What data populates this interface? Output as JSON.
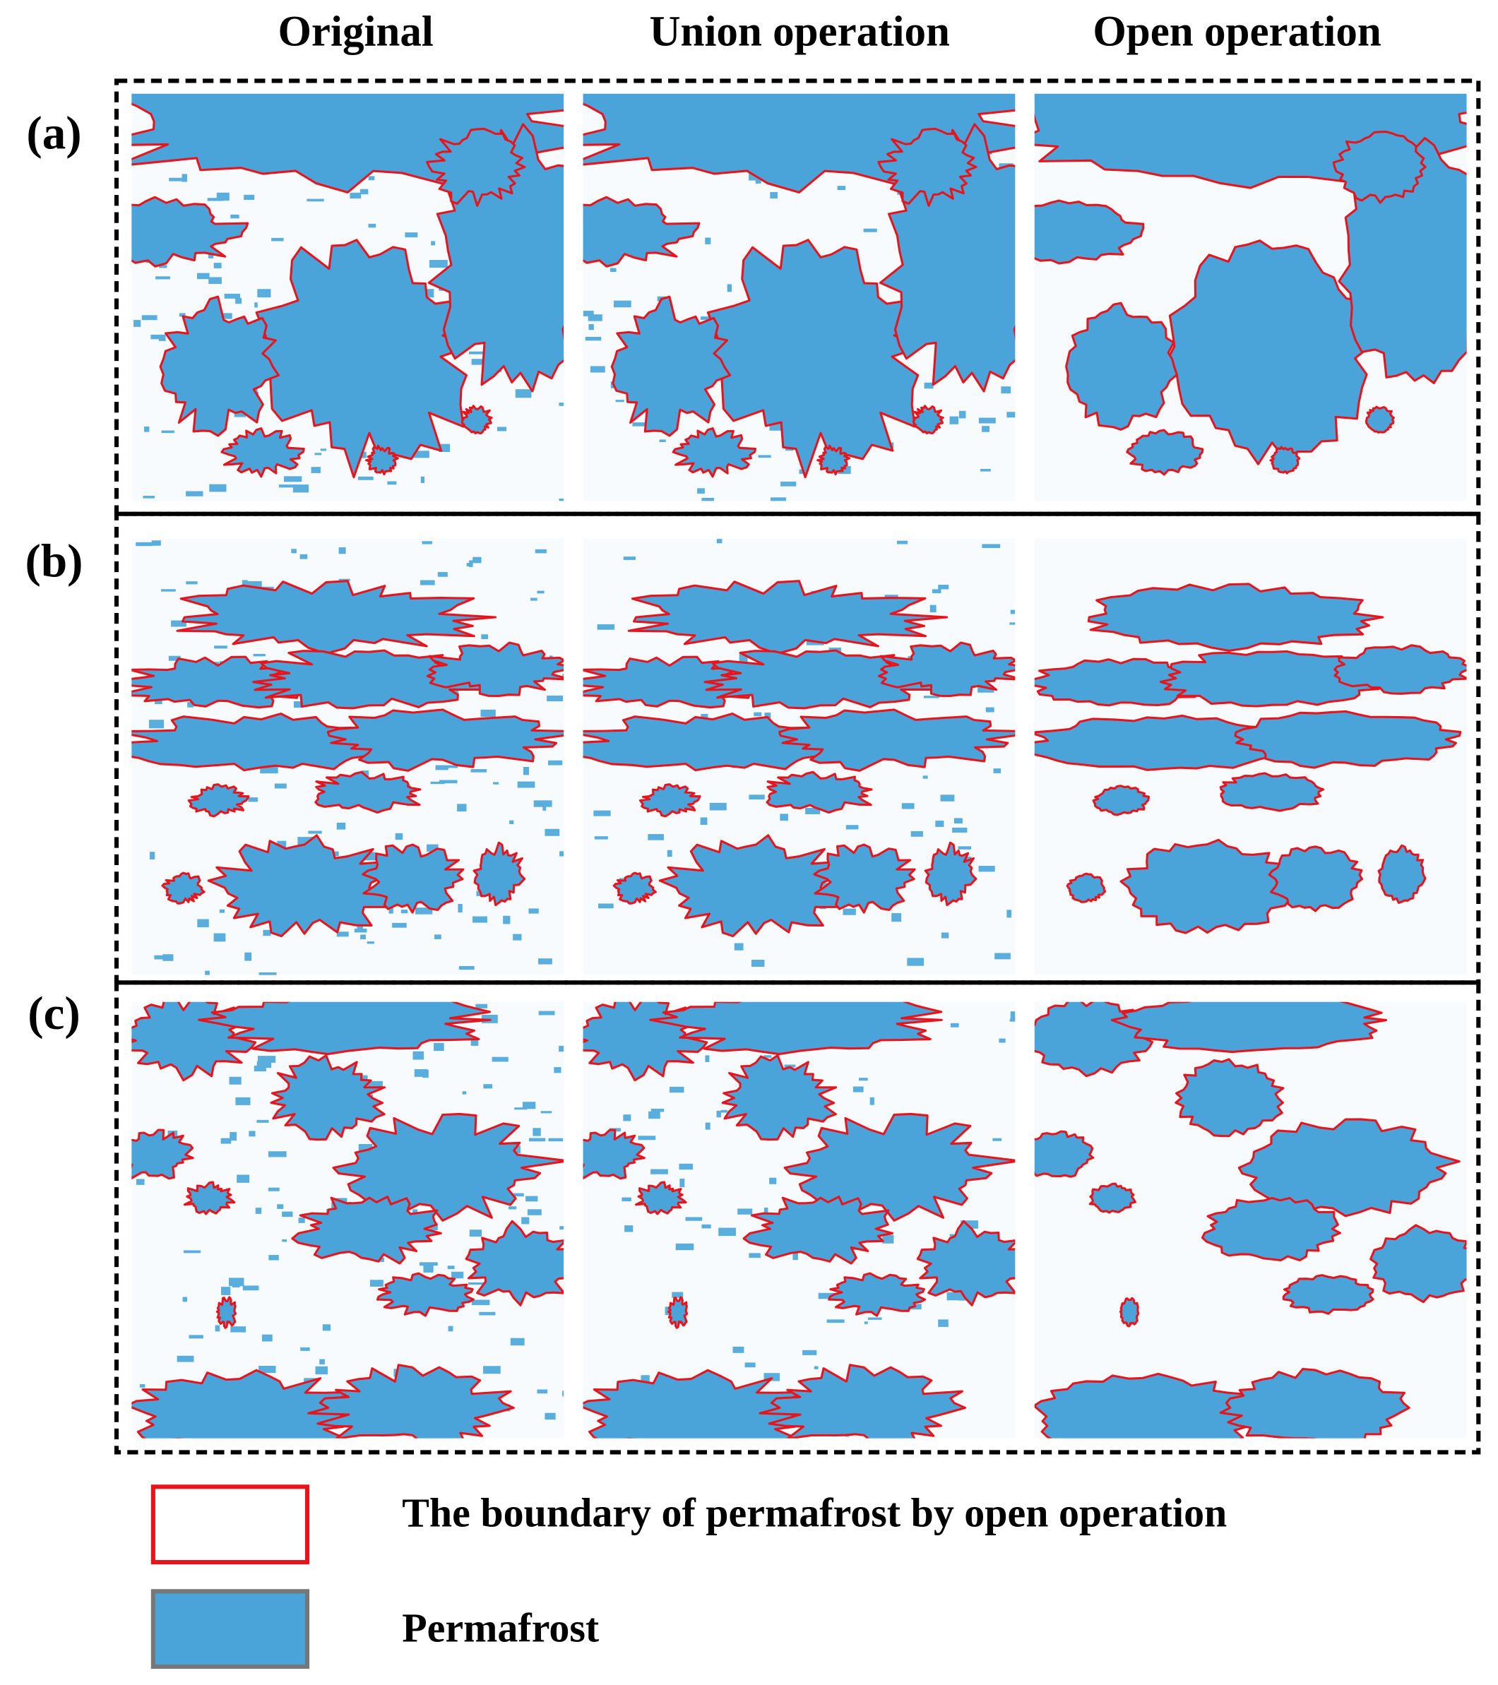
{
  "headers": [
    "Original",
    "Union operation",
    "Open operation"
  ],
  "rows": [
    "(a)",
    "(b)",
    "(c)"
  ],
  "legend": [
    "The boundary of permafrost by open operation",
    "Permafrost"
  ]
}
